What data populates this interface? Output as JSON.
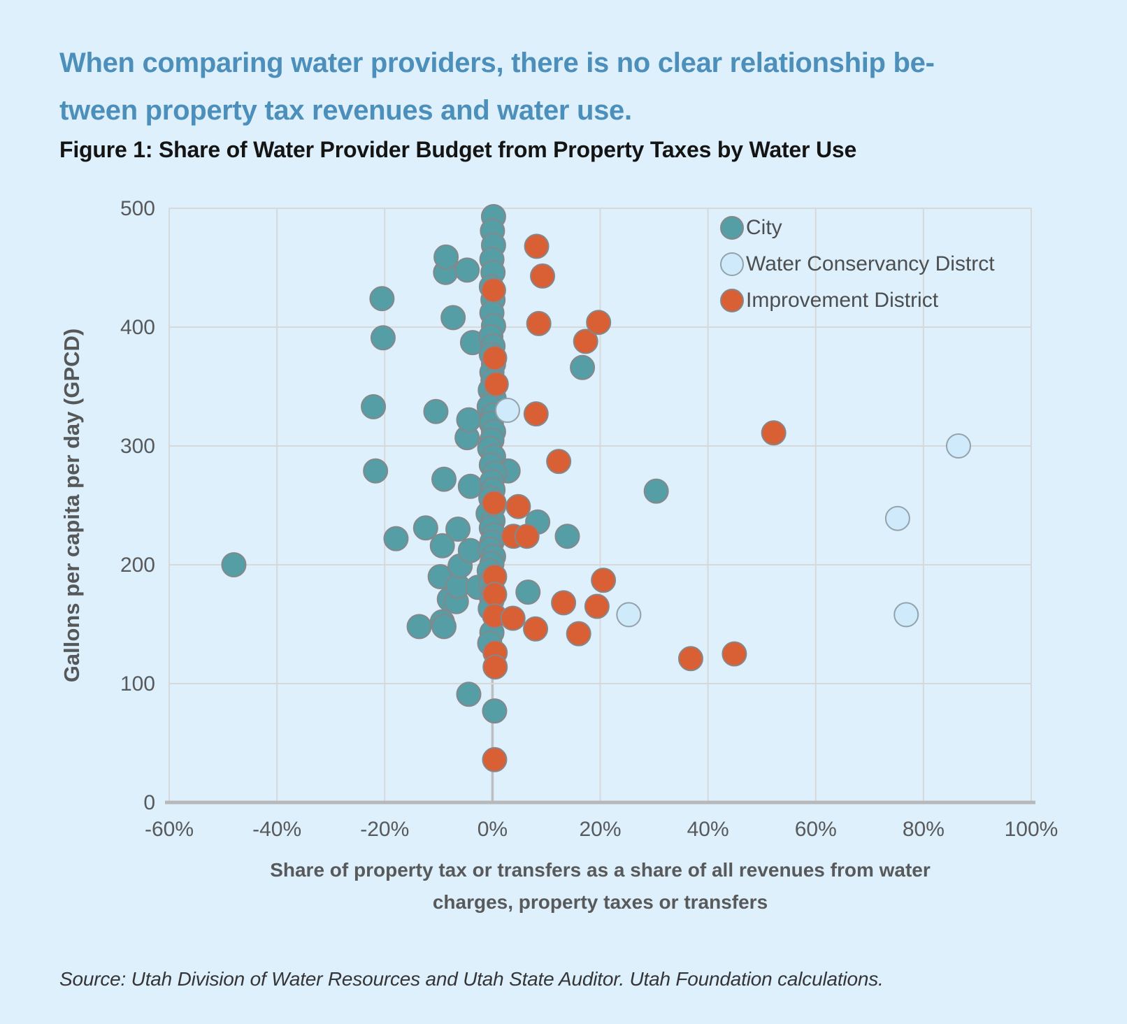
{
  "page": {
    "heading_line1": "When comparing water providers, there is no clear relationship be-",
    "heading_line2": "tween property tax revenues and water use.",
    "figure_title": "Figure 1: Share of Water Provider Budget from Property Taxes by Water Use",
    "source_note": "Source: Utah Division of Water Resources and Utah State Auditor. Utah Foundation calculations."
  },
  "chart_data": {
    "type": "scatter",
    "title": "Figure 1: Share of Water Provider Budget from Property Taxes by Water Use",
    "xlabel_line1": "Share of property tax or transfers as a share of all revenues from water",
    "xlabel_line2": "charges, property taxes or transfers",
    "ylabel": "Gallons per capita per day (GPCD)",
    "xlim": [
      -60,
      100
    ],
    "ylim": [
      0,
      500
    ],
    "x_ticks": [
      -60,
      -40,
      -20,
      0,
      20,
      40,
      60,
      80,
      100
    ],
    "x_tick_labels": [
      "-60%",
      "-40%",
      "-20%",
      "0%",
      "20%",
      "40%",
      "60%",
      "80%",
      "100%"
    ],
    "y_ticks": [
      0,
      100,
      200,
      300,
      400,
      500
    ],
    "y_tick_labels": [
      "0",
      "100",
      "200",
      "300",
      "400",
      "500"
    ],
    "grid": true,
    "legend_position": "top-right",
    "colors": {
      "background": "#ddf0fb",
      "grid": "#d7d8da",
      "zero_line": "#bdbec0",
      "axis_line": "#b7b8ba",
      "tick_text": "#58595b",
      "heading_blue": "#4d8fbb"
    },
    "series": [
      {
        "name": "City",
        "color": "#559ea6",
        "stroke": "#85878a",
        "points": [
          [
            -48,
            200
          ],
          [
            -22.1,
            333
          ],
          [
            -21.7,
            279
          ],
          [
            -20.5,
            424
          ],
          [
            -20.3,
            391
          ],
          [
            -17.9,
            222
          ],
          [
            -13.6,
            148
          ],
          [
            -12.4,
            231
          ],
          [
            -10.5,
            329
          ],
          [
            -9.7,
            190
          ],
          [
            -9.3,
            216
          ],
          [
            -9.3,
            152
          ],
          [
            -9,
            272
          ],
          [
            -9,
            148
          ],
          [
            -8.7,
            446
          ],
          [
            -8.6,
            459
          ],
          [
            -8,
            171
          ],
          [
            -7.3,
            408
          ],
          [
            -6.7,
            169
          ],
          [
            -6.4,
            230
          ],
          [
            -6.4,
            182
          ],
          [
            -6,
            199
          ],
          [
            -4.7,
            448
          ],
          [
            -4.7,
            307
          ],
          [
            -4.4,
            322
          ],
          [
            -4.4,
            91
          ],
          [
            -4.1,
            266
          ],
          [
            -4.1,
            212
          ],
          [
            -3.7,
            387
          ],
          [
            -2.7,
            181
          ],
          [
            2.9,
            279
          ],
          [
            6.6,
            177
          ],
          [
            8.4,
            236
          ],
          [
            13.9,
            224
          ],
          [
            16.7,
            366
          ],
          [
            30.4,
            262
          ],
          [
            0.2,
            493
          ],
          [
            0,
            481
          ],
          [
            0.2,
            469
          ],
          [
            -0.1,
            457
          ],
          [
            0.1,
            446
          ],
          [
            -0.2,
            434
          ],
          [
            0.1,
            423
          ],
          [
            -0.1,
            412
          ],
          [
            0.2,
            401
          ],
          [
            -0.3,
            392
          ],
          [
            0.1,
            384
          ],
          [
            -0.2,
            377
          ],
          [
            0.2,
            369
          ],
          [
            -0.1,
            362
          ],
          [
            0.1,
            355
          ],
          [
            -0.4,
            347
          ],
          [
            0.3,
            340
          ],
          [
            -0.6,
            333
          ],
          [
            0.1,
            326
          ],
          [
            -0.2,
            319
          ],
          [
            0.2,
            312
          ],
          [
            -0.1,
            305
          ],
          [
            -0.5,
            298
          ],
          [
            0.2,
            291
          ],
          [
            -0.2,
            284
          ],
          [
            0.4,
            277
          ],
          [
            -0.1,
            270
          ],
          [
            0.1,
            263
          ],
          [
            -0.3,
            256
          ],
          [
            0.2,
            249
          ],
          [
            -0.8,
            243
          ],
          [
            0.1,
            237
          ],
          [
            -0.2,
            231
          ],
          [
            0.3,
            225
          ],
          [
            -0.1,
            219
          ],
          [
            -0.4,
            213
          ],
          [
            0.2,
            207
          ],
          [
            -0.1,
            201
          ],
          [
            -0.6,
            195
          ],
          [
            0.1,
            189
          ],
          [
            -0.3,
            183
          ],
          [
            0.2,
            177
          ],
          [
            -0.1,
            170
          ],
          [
            -0.4,
            163
          ],
          [
            -0.1,
            143
          ],
          [
            -0.5,
            134
          ],
          [
            0.4,
            77
          ]
        ]
      },
      {
        "name": "Water Conservancy Distrct",
        "color": "#cfeafa",
        "stroke": "#93a2ab",
        "points": [
          [
            2.8,
            330
          ],
          [
            25.3,
            158
          ],
          [
            75.2,
            239
          ],
          [
            76.8,
            158
          ],
          [
            86.5,
            300
          ]
        ]
      },
      {
        "name": "Improvement District",
        "color": "#d95f35",
        "stroke": "#85878a",
        "points": [
          [
            0.2,
            431
          ],
          [
            0.4,
            374
          ],
          [
            0.7,
            352
          ],
          [
            0.3,
            252
          ],
          [
            0.4,
            190
          ],
          [
            0.4,
            175
          ],
          [
            0.4,
            157
          ],
          [
            0.5,
            126
          ],
          [
            0.5,
            114
          ],
          [
            3.8,
            155
          ],
          [
            3.9,
            224
          ],
          [
            4.8,
            249
          ],
          [
            6.4,
            224
          ],
          [
            8,
            146
          ],
          [
            8.1,
            327
          ],
          [
            8.2,
            468
          ],
          [
            9.3,
            443
          ],
          [
            8.6,
            403
          ],
          [
            12.3,
            287
          ],
          [
            13.2,
            168
          ],
          [
            16,
            142
          ],
          [
            17.3,
            388
          ],
          [
            19.4,
            165
          ],
          [
            19.7,
            404
          ],
          [
            20.6,
            187
          ],
          [
            36.8,
            121
          ],
          [
            44.9,
            125
          ],
          [
            52.2,
            311
          ],
          [
            0.4,
            36
          ]
        ]
      }
    ]
  }
}
